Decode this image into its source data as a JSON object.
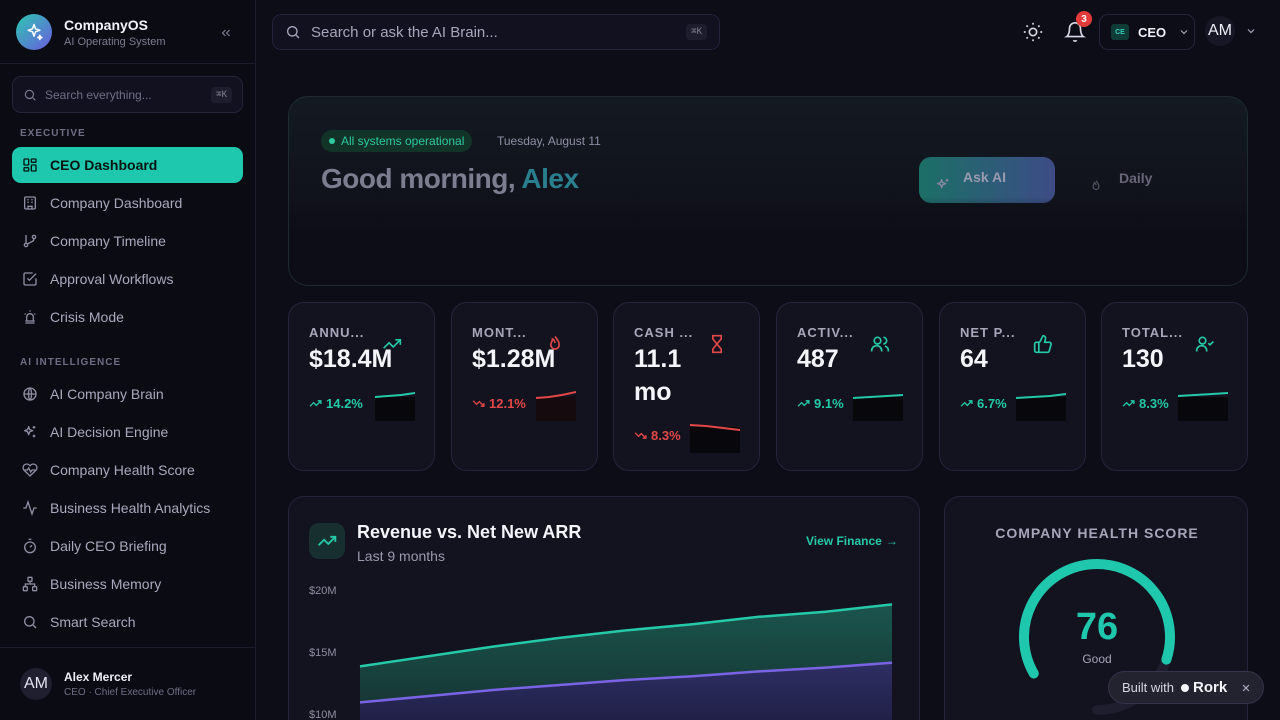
{
  "brand": {
    "name": "CompanyOS",
    "subtitle": "AI Operating System"
  },
  "sidebar": {
    "search_placeholder": "Search everything...",
    "search_shortcut": "⌘K",
    "sections": [
      {
        "label": "EXECUTIVE"
      },
      {
        "label": "AI INTELLIGENCE"
      }
    ],
    "items": [
      {
        "label": "CEO Dashboard",
        "icon": "grid-icon",
        "active": true
      },
      {
        "label": "Company Dashboard",
        "icon": "building-icon"
      },
      {
        "label": "Company Timeline",
        "icon": "git-branch-icon"
      },
      {
        "label": "Approval Workflows",
        "icon": "check-square-icon"
      },
      {
        "label": "Crisis Mode",
        "icon": "siren-icon"
      },
      {
        "label": "AI Company Brain",
        "icon": "globe-icon"
      },
      {
        "label": "AI Decision Engine",
        "icon": "sparkles-icon"
      },
      {
        "label": "Company Health Score",
        "icon": "heart-pulse-icon"
      },
      {
        "label": "Business Health Analytics",
        "icon": "activity-icon"
      },
      {
        "label": "Daily CEO Briefing",
        "icon": "timer-icon"
      },
      {
        "label": "Business Memory",
        "icon": "network-icon"
      },
      {
        "label": "Smart Search",
        "icon": "search-icon"
      }
    ],
    "user": {
      "initials": "AM",
      "name": "Alex Mercer",
      "role": "CEO · Chief Executive Officer"
    }
  },
  "header": {
    "search_placeholder": "Search or ask the AI Brain...",
    "search_shortcut": "⌘K",
    "notification_count": "3",
    "role_chip": "CE",
    "role_label": "CEO",
    "account_initials": "AM"
  },
  "hero": {
    "status": "All systems operational",
    "date": "Tuesday, August 11",
    "greeting": "Good morning, ",
    "name": "Alex",
    "ask_button": "Ask AI",
    "daily_button": "Daily"
  },
  "kpis": [
    {
      "label": "ANNU...",
      "value": "$18.4M",
      "change": "14.2%",
      "trend": "up",
      "icon": "trending-up-icon",
      "color": "#25c9a8"
    },
    {
      "label": "MONT...",
      "value": "$1.28M",
      "change": "12.1%",
      "trend": "down",
      "icon": "flame-icon",
      "color": "#e24848"
    },
    {
      "label": "CASH ...",
      "value": "11.1 mo",
      "change": "8.3%",
      "trend": "down",
      "icon": "hourglass-icon",
      "color": "#e24848"
    },
    {
      "label": "ACTIV...",
      "value": "487",
      "change": "9.1%",
      "trend": "up",
      "icon": "users-icon",
      "color": "#25c9a8"
    },
    {
      "label": "NET P...",
      "value": "64",
      "change": "6.7%",
      "trend": "up",
      "icon": "thumbs-up-icon",
      "color": "#25c9a8"
    },
    {
      "label": "TOTAL...",
      "value": "130",
      "change": "8.3%",
      "trend": "up",
      "icon": "user-check-icon",
      "color": "#25c9a8"
    }
  ],
  "revenue": {
    "title": "Revenue vs. Net New ARR",
    "subtitle": "Last 9 months",
    "link": "View Finance",
    "link_arrow": "→"
  },
  "chart_data": {
    "type": "area",
    "y_tick_labels": [
      "$20M",
      "$15M",
      "$10M"
    ],
    "y_ticks": [
      20,
      15,
      10
    ],
    "ylim": [
      10,
      20
    ],
    "x": [
      1,
      2,
      3,
      4,
      5,
      6,
      7,
      8,
      9
    ],
    "series": [
      {
        "values": [
          14.0,
          14.8,
          15.6,
          16.3,
          16.9,
          17.4,
          18.0,
          18.4,
          19.0
        ],
        "color": "#25c9a8"
      },
      {
        "values": [
          11.1,
          11.6,
          12.1,
          12.5,
          12.9,
          13.2,
          13.6,
          13.9,
          14.3
        ],
        "color": "#7b63e6"
      }
    ],
    "grid": false,
    "legend": "none"
  },
  "health": {
    "title": "COMPANY HEALTH SCORE",
    "score": "76",
    "max": 100,
    "grade": "Good",
    "color": "#1fc8ad"
  },
  "badge": {
    "prefix": "Built with",
    "brand": "Rork"
  }
}
